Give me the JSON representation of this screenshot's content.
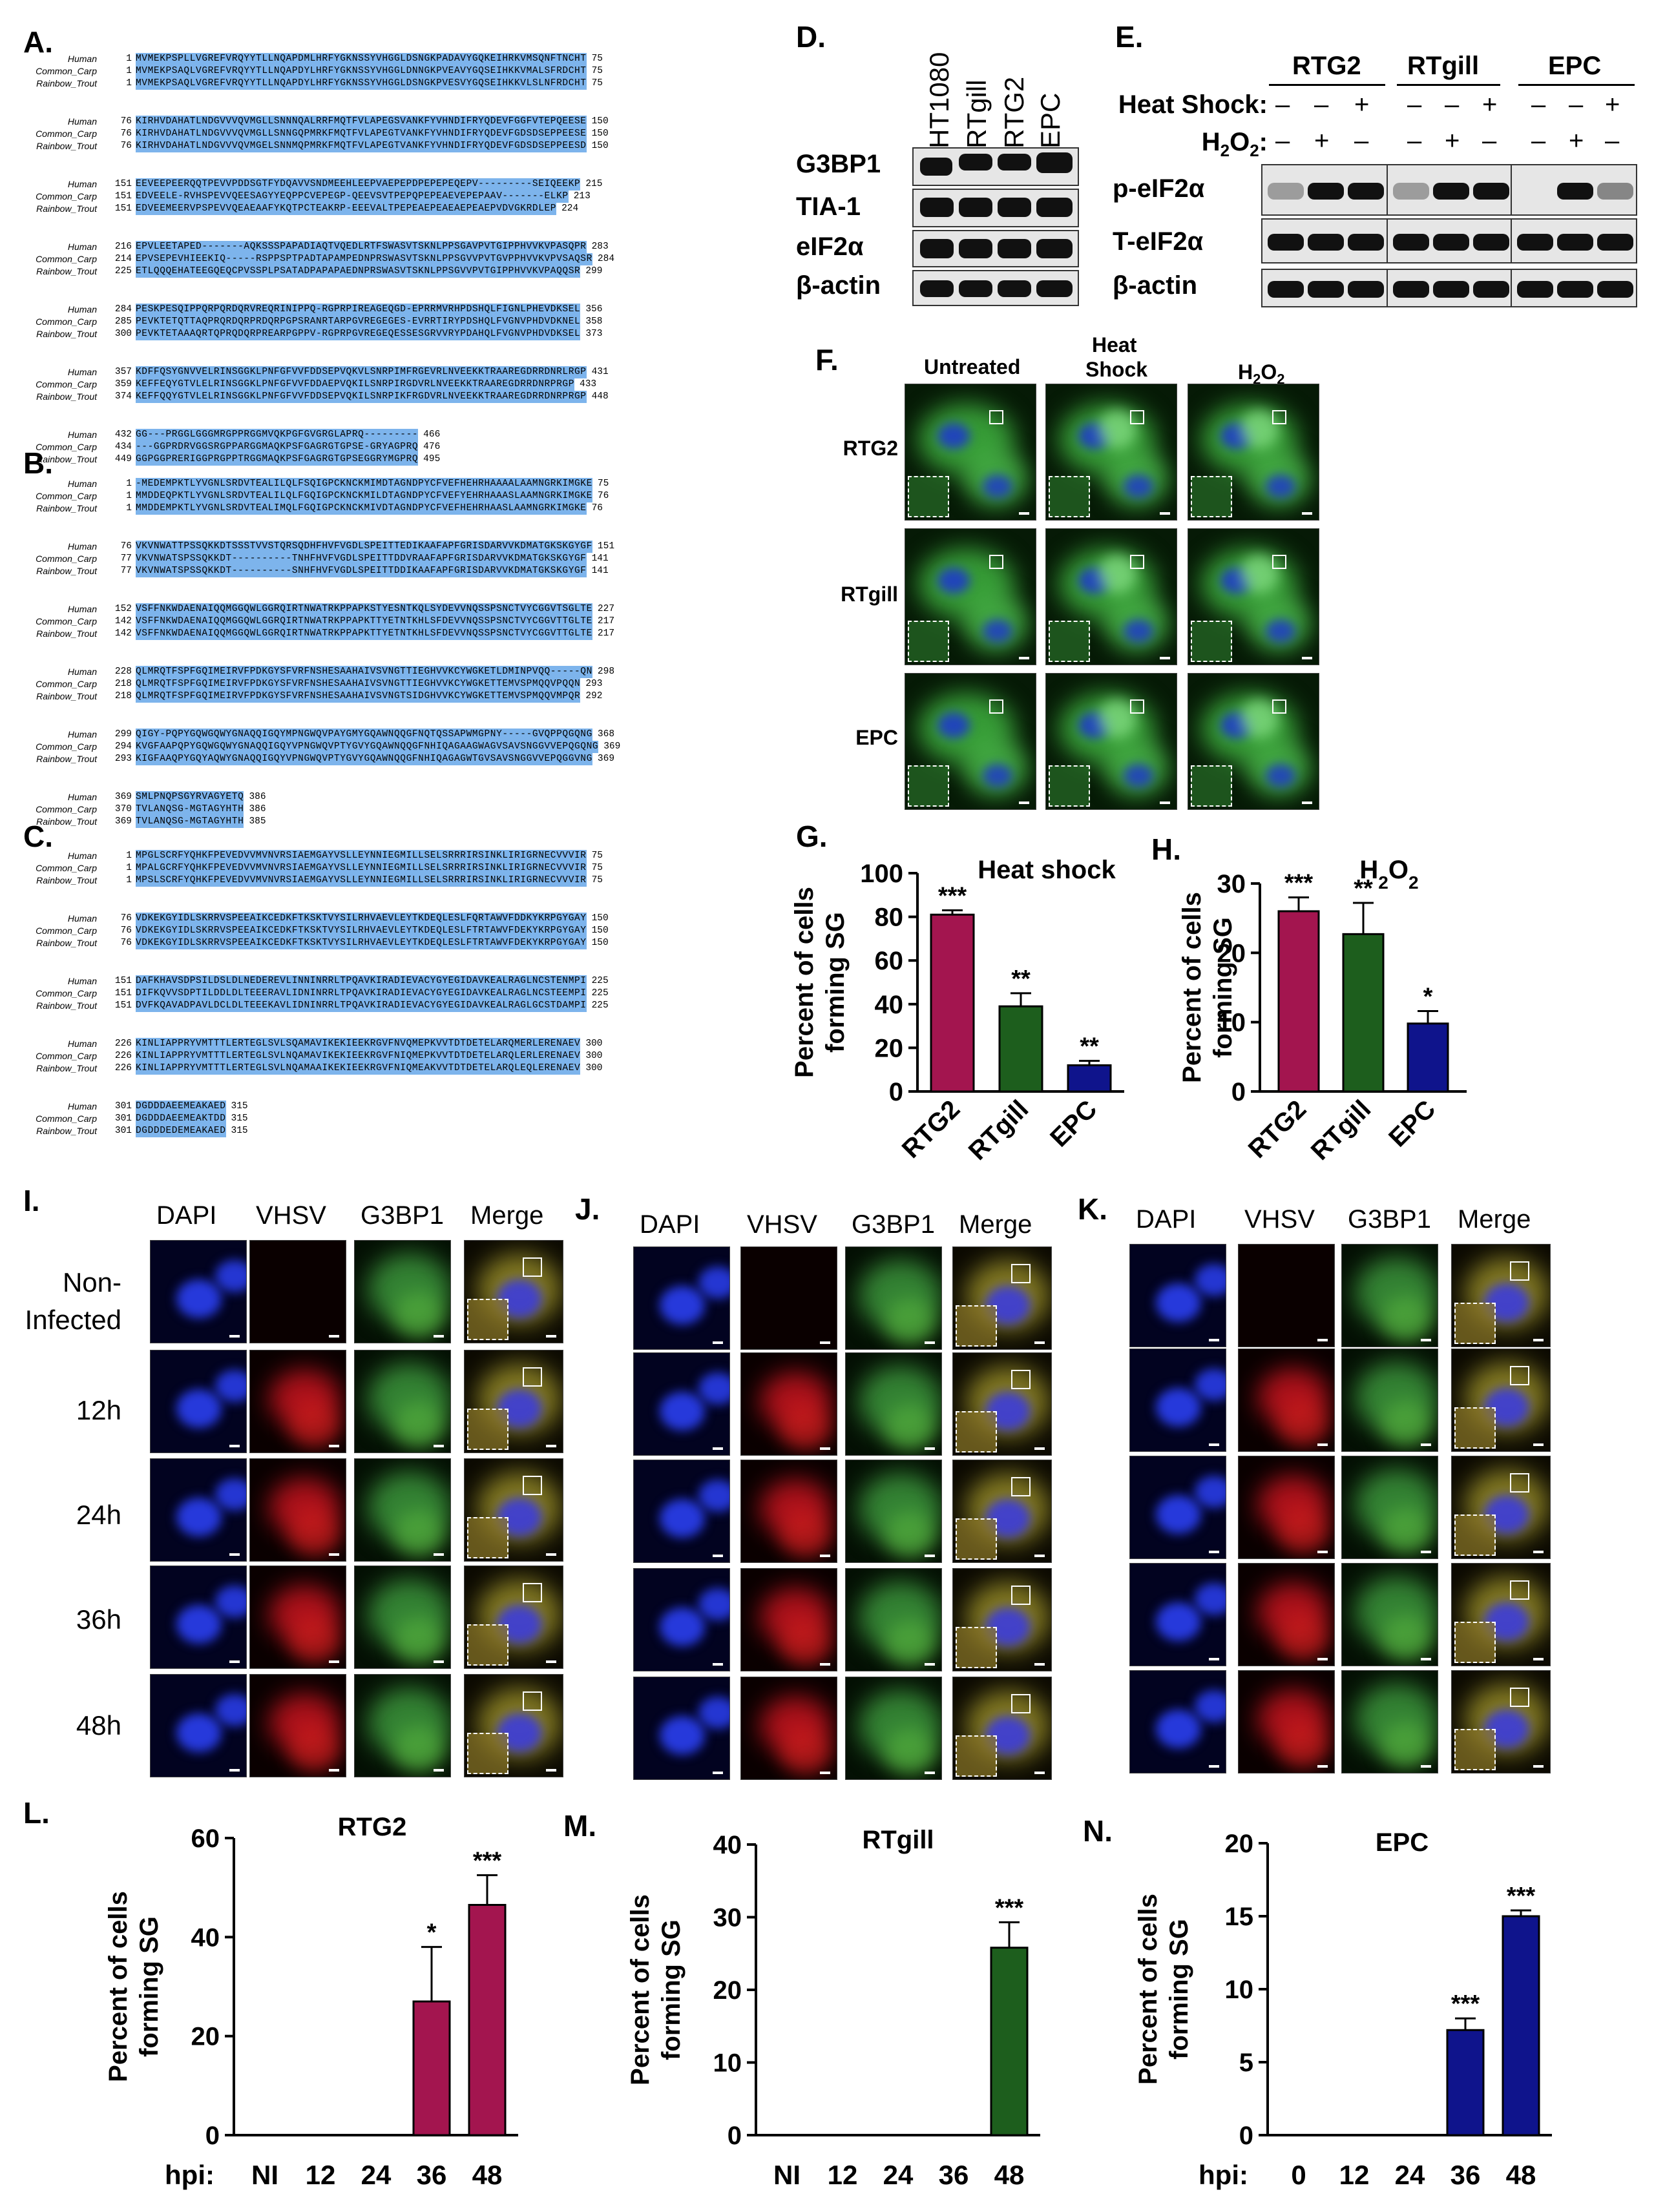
{
  "panels": {
    "A": "A.",
    "B": "B.",
    "C": "C.",
    "D": "D.",
    "E": "E.",
    "F": "F.",
    "G": "G.",
    "H": "H.",
    "I": "I.",
    "J": "J.",
    "K": "K.",
    "L": "L.",
    "M": "M.",
    "N": "N."
  },
  "alignments": {
    "A": [
      [
        {
          "name": "Human",
          "start": "1",
          "seq": "MVMEKPSPLLVGREFVRQYYTLLNQAPDMLHRFYGKNSSYVHGGLDSNGKPADAVYGQKEIHRKVMSQNFTNCHT",
          "end": "75"
        },
        {
          "name": "Common_Carp",
          "start": "1",
          "seq": "MVMEKPSAQLVGREFVRQYYTLLNQAPDYLHRFYGKNSSYVHGGLDNNGKPVEAVYGQSEIHKKVMALSFRDCHT",
          "end": "75"
        },
        {
          "name": "Rainbow_Trout",
          "start": "1",
          "seq": "MVMEKPSAQLVGREFVRQYYTLLNQAPDYLHRFYGKNSSYVHGGLDSNGKPVESVYGQSEIHKKVLSLNFRDCHT",
          "end": "75"
        }
      ],
      [
        {
          "name": "Human",
          "start": "76",
          "seq": "KIRHVDAHATLNDGVVVQVMGLLSNNNQALRRFMQTFVLAPEGSVANKFYVHNDIFRYQDEVFGGFVTEPQEESE",
          "end": "150"
        },
        {
          "name": "Common_Carp",
          "start": "76",
          "seq": "KIRHVDAHATLNDGVVVQVMGLLSNNGQPMRKFMQTFVLAPEGTVANKFYVHNDIFRYQDEVFGDSDSEPPEESE",
          "end": "150"
        },
        {
          "name": "Rainbow_Trout",
          "start": "76",
          "seq": "KIRHVDAHATLNDGVVVQVMGELSNNMQPMRKFMQTFVLAPEGTVANKFYVHNDIFRYQDEVFGDSDSEPPEESD",
          "end": "150"
        }
      ],
      [
        {
          "name": "Human",
          "start": "151",
          "seq": "EEVEEPEERQQTPEVVPDDSGTFYDQAVVSNDMEEHLEEPVAEPEPDPEPEPEQEPV---------SEIQEEKP",
          "end": "215"
        },
        {
          "name": "Common_Carp",
          "start": "151",
          "seq": "EDVEELE-RVHSPEVVQEESAGYYEQPPCVEPEGP-QEEVSVTPEPQPEPEAEVEPEPAAV-------ELKP",
          "end": "213"
        },
        {
          "name": "Rainbow_Trout",
          "start": "151",
          "seq": "EDVEEMEERVPSPEVVQEAEAAFYKQTPCTEAKRP-EEEVALTPEPEAEPEAEAEPEAEPVDVGKRDLEP",
          "end": "224"
        }
      ],
      [
        {
          "name": "Human",
          "start": "216",
          "seq": "EPVLEETAPED-------AQKSSSPAPADIAQTVQEDLRTFSWASVTSKNLPPSGAVPVTGIPPHVVKVPASQPR",
          "end": "283"
        },
        {
          "name": "Common_Carp",
          "start": "214",
          "seq": "EPVSEPEVHIEEKIQ-----RSPPSPTPADTAPAMPEDNPRSWASVTSKNLPPSGVVPVTGVPPHVVKVPVSAQSR",
          "end": "284"
        },
        {
          "name": "Rainbow_Trout",
          "start": "225",
          "seq": "ETLQQQEHATEEGQEQCPVSSPLPSATADPAPAPAEDNPRSWASVTSKNLPPSGVVPVTGIPPHVVKVPAQQSR",
          "end": "299"
        }
      ],
      [
        {
          "name": "Human",
          "start": "284",
          "seq": "PESKPESQIPPQRPQRDQRVREQRINIPPQ-RGPRPIREAGEQGD-EPRRMVRHPDSHQLFIGNLPHEVDKSEL",
          "end": "356"
        },
        {
          "name": "Common_Carp",
          "start": "285",
          "seq": "PEVKTETQTTAQPRQRDQRPRDQRPGPSRANRTARPGVREGEGES-EVRRTIRYPDSHQLFVGNVPHDVDKNEL",
          "end": "358"
        },
        {
          "name": "Rainbow_Trout",
          "start": "300",
          "seq": "PEVKTETAAAQRTQPRQDQRPREARPGPPV-RGPRPGVREGEQESSESGRVVRYPDAHQLFVGNVPHDVDKSEL",
          "end": "373"
        }
      ],
      [
        {
          "name": "Human",
          "start": "357",
          "seq": "KDFFQSYGNVVELRINSGGKLPNFGFVVFDDSEPVQKVLSNRPIMFRGEVRLNVEEKKTRAAREGDRRDNRLRGP",
          "end": "431"
        },
        {
          "name": "Common_Carp",
          "start": "359",
          "seq": "KEFFEQYGTVLELRINSGGKLPNFGFVVFDDAEPVQKILSNRPIRGDVRLNVEEKKTRAAREGDRRDNRPRGP",
          "end": "433"
        },
        {
          "name": "Rainbow_Trout",
          "start": "374",
          "seq": "KEFFQQYGTVLELRINSGGKLPNFGFVVFDDSEPVQKILSNRPIKFRGDVRLNVEEKKTRAAREGDRRDNRPRGP",
          "end": "448"
        }
      ],
      [
        {
          "name": "Human",
          "start": "432",
          "seq": "GG---PRGGLGGGMRGPPRGGMVQKPGFGVGRGLAPRQ---------",
          "end": "466"
        },
        {
          "name": "Common_Carp",
          "start": "434",
          "seq": "---GGPRDRVGGSRGPPARGGMAQKPSFGAGRGTGPSE-GRYAGPRQ",
          "end": "476"
        },
        {
          "name": "Rainbow_Trout",
          "start": "449",
          "seq": "GGPGGPRERIGGPRGPPTRGGMAQKPSFGAGRGTGPSEGGRYMGPRQ",
          "end": "495"
        }
      ]
    ],
    "B": [
      [
        {
          "name": "Human",
          "start": "1",
          "seq": "-MEDEMPKTLYVGNLSRDVTEALILQLFSQIGPCKNCKMIMDTAGNDPYCFVEFHEHRHAAAALAAMNGRKIMGKE",
          "end": "75"
        },
        {
          "name": "Common_Carp",
          "start": "1",
          "seq": "MMDDEQPKTLYVGNLSRDVTEALILQLFGQIGPCKNCKMILDTAGNDPYCFVEFYEHRHAAASLAAMNGRKIMGKE",
          "end": "76"
        },
        {
          "name": "Rainbow_Trout",
          "start": "1",
          "seq": "MMDDEMPKTLYVGNLSRDVTEALIMQLFGQIGPCKNCKMIVDTAGNDPYCFVEFHEHRHAASLAAMNGRKIMGKE",
          "end": "76"
        }
      ],
      [
        {
          "name": "Human",
          "start": "76",
          "seq": "VKVNWATTPSSQKKDTSSSTVVSTQRSQDHFHVFVGDLSPEITTEDIKAAFAPFGRISDARVVKDMATGKSKGYGF",
          "end": "151"
        },
        {
          "name": "Common_Carp",
          "start": "77",
          "seq": "VKVNWATSPSSQKKDT----------TNHFHVFVGDLSPEITTDDVRAAFAPFGRISDARVVKDMATGKSKGYGF",
          "end": "141"
        },
        {
          "name": "Rainbow_Trout",
          "start": "77",
          "seq": "VKVNWATSPSSQKKDT----------SNHFHVFVGDLSPEITTDDIKAAFAPFGRISDARVVKDMATGKSKGYGF",
          "end": "141"
        }
      ],
      [
        {
          "name": "Human",
          "start": "152",
          "seq": "VSFFNKWDAENAIQQMGGQWLGGRQIRTNWATRKPPAPKSTYESNTKQLSYDEVVNQSSPSNCTVYCGGVTSGLTE",
          "end": "227"
        },
        {
          "name": "Common_Carp",
          "start": "142",
          "seq": "VSFFNKWDAENAIQQMGGQWLGGRQIRTNWATRKPPAPKTTYETNTKHLSFDEVVNQSSPSNCTVYCGGVTTGLTE",
          "end": "217"
        },
        {
          "name": "Rainbow_Trout",
          "start": "142",
          "seq": "VSFFNKWDAENAIQQMGGQWLGGRQIRTNWATRKPPAPKTTYETNTKHLSFDEVVNQSSPSNCTVYCGGVTTGLTE",
          "end": "217"
        }
      ],
      [
        {
          "name": "Human",
          "start": "228",
          "seq": "QLMRQTFSPFGQIMEIRVFPDKGYSFVRFNSHESAAHAIVSVNGTTIEGHVVKCYWGKETLDMINPVQQ-----QN",
          "end": "298"
        },
        {
          "name": "Common_Carp",
          "start": "218",
          "seq": "QLMRQTFSPFGQIMEIRVFPDKGYSFVRFNSHESAAHAIVSVNGTTIEGHVVKCYWGKETTEMVSPMQQVPQQN",
          "end": "293"
        },
        {
          "name": "Rainbow_Trout",
          "start": "218",
          "seq": "QLMRQTFSPFGQIMEIRVFPDKGYSFVRFNSHESAAHAIVSVNGTSIDGHVVKCYWGKETTEMVSPMQQVMPQR",
          "end": "292"
        }
      ],
      [
        {
          "name": "Human",
          "start": "299",
          "seq": "QIGY-PQPYGQWGQWYGNAQQIGQYMPNGWQVPAYGMYGQAWNQQGFNQTQSSAPWMGPNY-----GVQPPQGQNG",
          "end": "368"
        },
        {
          "name": "Common_Carp",
          "start": "294",
          "seq": "KVGFAAPQPYGQWGQWYGNAQQIGQYVPNGWQVPTYGVYGQAWNQQGFNHIQAGAAGWAGVSAVSNGGVVEPQGQNG",
          "end": "369"
        },
        {
          "name": "Rainbow_Trout",
          "start": "293",
          "seq": "KIGFAAQPYGQYAQWYGNAQQIGQYVPNGWQVPTYGVYGQAWNQQGFNHIQAGAGWTGVSAVSNGGVVEPQGGVNG",
          "end": "369"
        }
      ],
      [
        {
          "name": "Human",
          "start": "369",
          "seq": "SMLPNQPSGYRVAGYETQ",
          "end": "386"
        },
        {
          "name": "Common_Carp",
          "start": "370",
          "seq": "TVLANQSG-MGTAGYHTH",
          "end": "386"
        },
        {
          "name": "Rainbow_Trout",
          "start": "369",
          "seq": "TVLANQSG-MGTAGYHTH",
          "end": "385"
        }
      ]
    ],
    "C": [
      [
        {
          "name": "Human",
          "start": "1",
          "seq": "MPGLSCRFYQHKFPEVEDVVMVNVRSIAEMGAYVSLLEYNNIEGMILLSELSRRRIRSINKLIRIGRNECVVVIR",
          "end": "75"
        },
        {
          "name": "Common_Carp",
          "start": "1",
          "seq": "MPALGCRFYQHKFPEVEDVVMVNVRSIAEMGAYVSLLEYNNIEGMILLSELSRRRIRSINKLIRIGRNECVVVIR",
          "end": "75"
        },
        {
          "name": "Rainbow_Trout",
          "start": "1",
          "seq": "MPSLSCRFYQHKFPEVEDVVMVNVRSIAEMGAYVSLLEYNNIEGMILLSELSRRRIRSINKLIRIGRNECVVVIR",
          "end": "75"
        }
      ],
      [
        {
          "name": "Human",
          "start": "76",
          "seq": "VDKEKGYIDLSKRRVSPEEAIKCEDKFTKSKTVYSILRHVAEVLEYTKDEQLESLFQRTAWVFDDKYKRPGYGAY",
          "end": "150"
        },
        {
          "name": "Common_Carp",
          "start": "76",
          "seq": "VDKEKGYIDLSKRRVSPEEAIKCEDKFTKSKTVYSILRHVAEVLEYTKDEQLESLFTRTAWVFDEKYKRPGYGAY",
          "end": "150"
        },
        {
          "name": "Rainbow_Trout",
          "start": "76",
          "seq": "VDKEKGYIDLSKRRVSPEEAIKCEDKFTKSKTVYSILRHVAEVLEYTKDEQLESLFTRTAWVFDEKYKRPGYGAY",
          "end": "150"
        }
      ],
      [
        {
          "name": "Human",
          "start": "151",
          "seq": "DAFKHAVSDPSILDSLDLNEDEREVLINNINRRLTPQAVKIRADIEVACYGYEGIDAVKEALRAGLNCSTENMPI",
          "end": "225"
        },
        {
          "name": "Common_Carp",
          "start": "151",
          "seq": "DIFKQVVSDPTILDDLDLTEEERAVLIDNINRRLTPQAVKIRADIEVACYGYEGIDAVKEALRAGLNCSTEEMPI",
          "end": "225"
        },
        {
          "name": "Rainbow_Trout",
          "start": "151",
          "seq": "DVFKQAVADPAVLDCLDLTEEEKAVLIDNINRRLTPQAVKIRADIEVACYGYEGIDAVKEALRAGLGCSTDAMPI",
          "end": "225"
        }
      ],
      [
        {
          "name": "Human",
          "start": "226",
          "seq": "KINLIAPPRYVMTTTLERTEGLSVLSQAMAVIKEKIEEKRGVFNVQMEPKVVTDTDETELARQMERLERENAEV",
          "end": "300"
        },
        {
          "name": "Common_Carp",
          "start": "226",
          "seq": "KINLIAPPRYVMTTTLERTEGLSVLNQAMAVIKEKIEEKRGVFNIQMEPKVVTDTDETELARQLERLERENAEV",
          "end": "300"
        },
        {
          "name": "Rainbow_Trout",
          "start": "226",
          "seq": "KINLIAPPRYVMTTTLERTEGLSVLNQAMAAIKEKIEEKRGVFNIQMEAKVVTDTDETELARQLEQLERENAEV",
          "end": "300"
        }
      ],
      [
        {
          "name": "Human",
          "start": "301",
          "seq": "DGDDDAEEMEAKAED",
          "end": "315"
        },
        {
          "name": "Common_Carp",
          "start": "301",
          "seq": "DGDDDAEEMEAKTDD",
          "end": "315"
        },
        {
          "name": "Rainbow_Trout",
          "start": "301",
          "seq": "DGDDDEDEMEAKAED",
          "end": "315"
        }
      ]
    ]
  },
  "blotD": {
    "lanes": [
      "HT1080",
      "RTgill",
      "RTG2",
      "EPC"
    ],
    "rows": [
      "G3BP1",
      "TIA-1",
      "eIF2α",
      "β-actin"
    ]
  },
  "blotE": {
    "groups": [
      "RTG2",
      "RTgill",
      "EPC"
    ],
    "heat_label": "Heat Shock:",
    "h2o2_label": "H",
    "h2o2_sub": "2",
    "h2o2_o": "O",
    "h2o2_sub2": "2",
    "h2o2_colon": ":",
    "heat_signs": [
      "–",
      "–",
      "+",
      "–",
      "–",
      "+",
      "–",
      "–",
      "+"
    ],
    "h2o2_signs": [
      "–",
      "+",
      "–",
      "–",
      "+",
      "–",
      "–",
      "+",
      "–"
    ],
    "rows": [
      "p-eIF2α",
      "T-eIF2α",
      "β-actin"
    ]
  },
  "panelF": {
    "cols": [
      "Untreated",
      "Heat",
      "Shock",
      "H",
      "2",
      "O",
      "2"
    ],
    "rows": [
      "RTG2",
      "RTgill",
      "EPC"
    ]
  },
  "panelIJK": {
    "cols": [
      "DAPI",
      "VHSV",
      "G3BP1",
      "Merge"
    ],
    "rowsI": [
      "Non-",
      "Infected",
      "12h",
      "24h",
      "36h",
      "48h"
    ]
  },
  "colors": {
    "rtg2": "#a3154f",
    "rtgill": "#1d5e1d",
    "epc": "#0f148c",
    "align": "#7db4ec"
  },
  "chart_data": [
    {
      "id": "G",
      "type": "bar",
      "title": "Heat shock",
      "ylabel": "Percent of cells forming SG",
      "ylabel1": "Percent of cells",
      "ylabel2": "forming SG",
      "categories": [
        "RTG2",
        "RTgill",
        "EPC"
      ],
      "values": [
        81,
        39,
        12
      ],
      "errors": [
        2,
        6,
        2
      ],
      "sig": [
        "***",
        "**",
        "**"
      ],
      "ylim": [
        0,
        100
      ],
      "yticks": [
        "0",
        "20",
        "40",
        "60",
        "80",
        "100"
      ]
    },
    {
      "id": "H",
      "type": "bar",
      "title": "H",
      "title_sub": "2",
      "title_o": "O",
      "title_sub2": "2",
      "ylabel1": "Percent of cells",
      "ylabel2": "forming SG",
      "categories": [
        "RTG2",
        "RTgill",
        "EPC"
      ],
      "values": [
        26,
        22.7,
        9.8
      ],
      "errors": [
        2,
        4.5,
        1.8
      ],
      "sig": [
        "***",
        "**",
        "*"
      ],
      "ylim": [
        0,
        30
      ],
      "yticks": [
        "0",
        "10",
        "20",
        "30"
      ]
    },
    {
      "id": "L",
      "type": "bar",
      "title": "RTG2",
      "ylabel1": "Percent of cells",
      "ylabel2": "forming SG",
      "xprefix": "hpi:",
      "categories": [
        "NI",
        "12",
        "24",
        "36",
        "48"
      ],
      "values": [
        0,
        0,
        0,
        27,
        46.5
      ],
      "errors": [
        0,
        0,
        0,
        11,
        6
      ],
      "sig": [
        "",
        "",
        "",
        "*",
        "***"
      ],
      "ylim": [
        0,
        60
      ],
      "yticks": [
        "0",
        "20",
        "40",
        "60"
      ]
    },
    {
      "id": "M",
      "type": "bar",
      "title": "RTgill",
      "ylabel1": "Percent of cells",
      "ylabel2": "forming SG",
      "categories": [
        "NI",
        "12",
        "24",
        "36",
        "48"
      ],
      "values": [
        0,
        0,
        0,
        0,
        25.8
      ],
      "errors": [
        0,
        0,
        0,
        0,
        3.5
      ],
      "sig": [
        "",
        "",
        "",
        "",
        "***"
      ],
      "ylim": [
        0,
        40
      ],
      "yticks": [
        "0",
        "10",
        "20",
        "30",
        "40"
      ]
    },
    {
      "id": "N",
      "type": "bar",
      "title": "EPC",
      "ylabel1": "Percent of cells",
      "ylabel2": "forming SG",
      "xprefix": "hpi:",
      "categories": [
        "0",
        "12",
        "24",
        "36",
        "48"
      ],
      "values": [
        0,
        0,
        0,
        7.2,
        15
      ],
      "errors": [
        0,
        0,
        0,
        0.8,
        0.4
      ],
      "sig": [
        "",
        "",
        "",
        "***",
        "***"
      ],
      "ylim": [
        0,
        20
      ],
      "yticks": [
        "0",
        "5",
        "10",
        "15",
        "20"
      ]
    }
  ]
}
